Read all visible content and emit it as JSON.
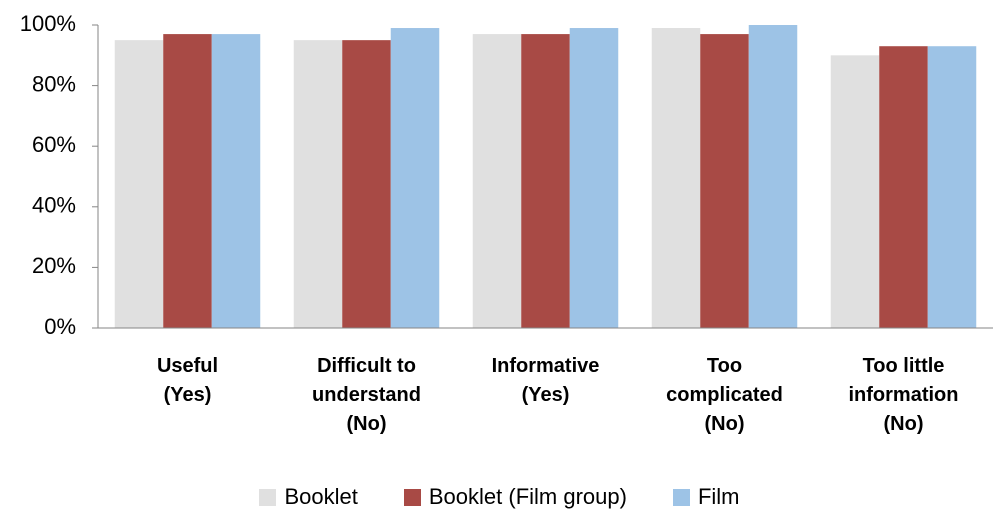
{
  "chart_data": {
    "type": "bar",
    "categories": [
      "Useful\n(Yes)",
      "Difficult to\nunderstand\n(No)",
      "Informative\n(Yes)",
      "Too\ncomplicated\n(No)",
      "Too little\ninformation\n(No)"
    ],
    "series": [
      {
        "name": "Booklet",
        "color": "#e0e0e0",
        "values": [
          95,
          95,
          97,
          99,
          90
        ]
      },
      {
        "name": "Booklet (Film group)",
        "color": "#a84a45",
        "values": [
          97,
          95,
          97,
          97,
          93
        ]
      },
      {
        "name": "Film",
        "color": "#9dc3e6",
        "values": [
          97,
          99,
          99,
          100,
          93
        ]
      }
    ],
    "ylim": [
      0,
      100
    ],
    "yticks": [
      {
        "value": 0,
        "label": "0%"
      },
      {
        "value": 20,
        "label": "20%"
      },
      {
        "value": 40,
        "label": "40%"
      },
      {
        "value": 60,
        "label": "60%"
      },
      {
        "value": 80,
        "label": "80%"
      },
      {
        "value": 100,
        "label": "100%"
      }
    ],
    "grid": false,
    "legend": "bottom"
  }
}
